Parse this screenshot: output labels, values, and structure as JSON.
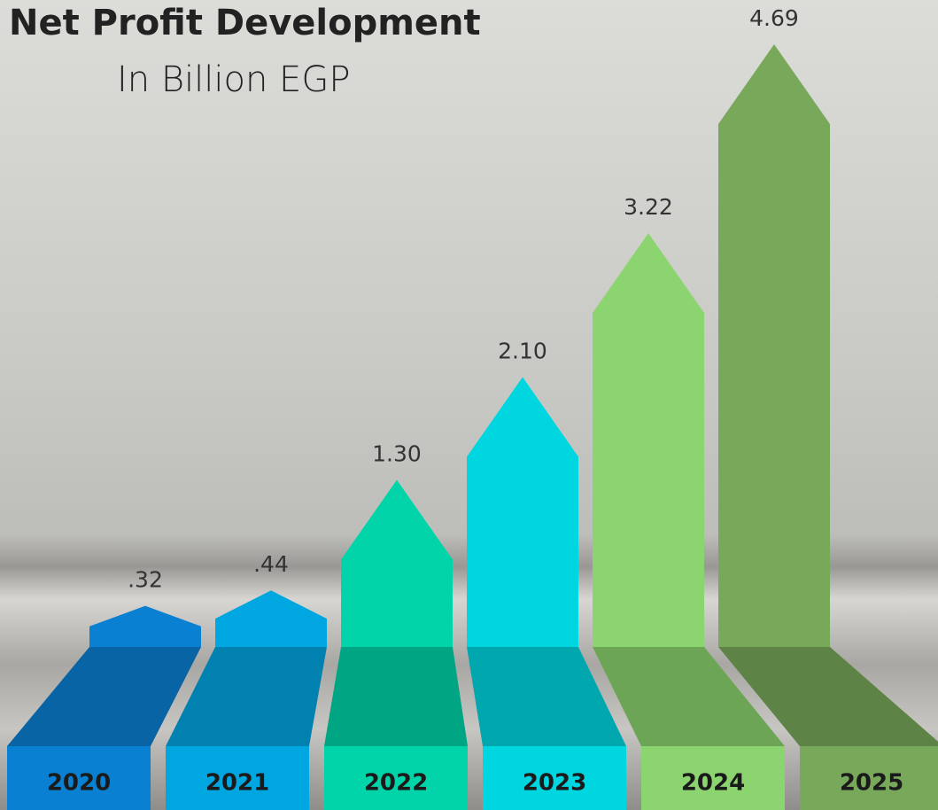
{
  "chart_data": {
    "type": "bar",
    "title": "Net Profit Development",
    "subtitle": "In Billion EGP",
    "categories": [
      "2020",
      "2021",
      "2022",
      "2023",
      "2024",
      "2025"
    ],
    "values": [
      0.32,
      0.44,
      1.3,
      2.1,
      3.22,
      4.69
    ],
    "value_labels": [
      ".32",
      ".44",
      "1.30",
      "2.10",
      "3.22",
      "4.69"
    ],
    "colors": [
      "#0a80d2",
      "#00a6e0",
      "#00d4a8",
      "#00d6e0",
      "#8cd470",
      "#78a85a"
    ]
  }
}
